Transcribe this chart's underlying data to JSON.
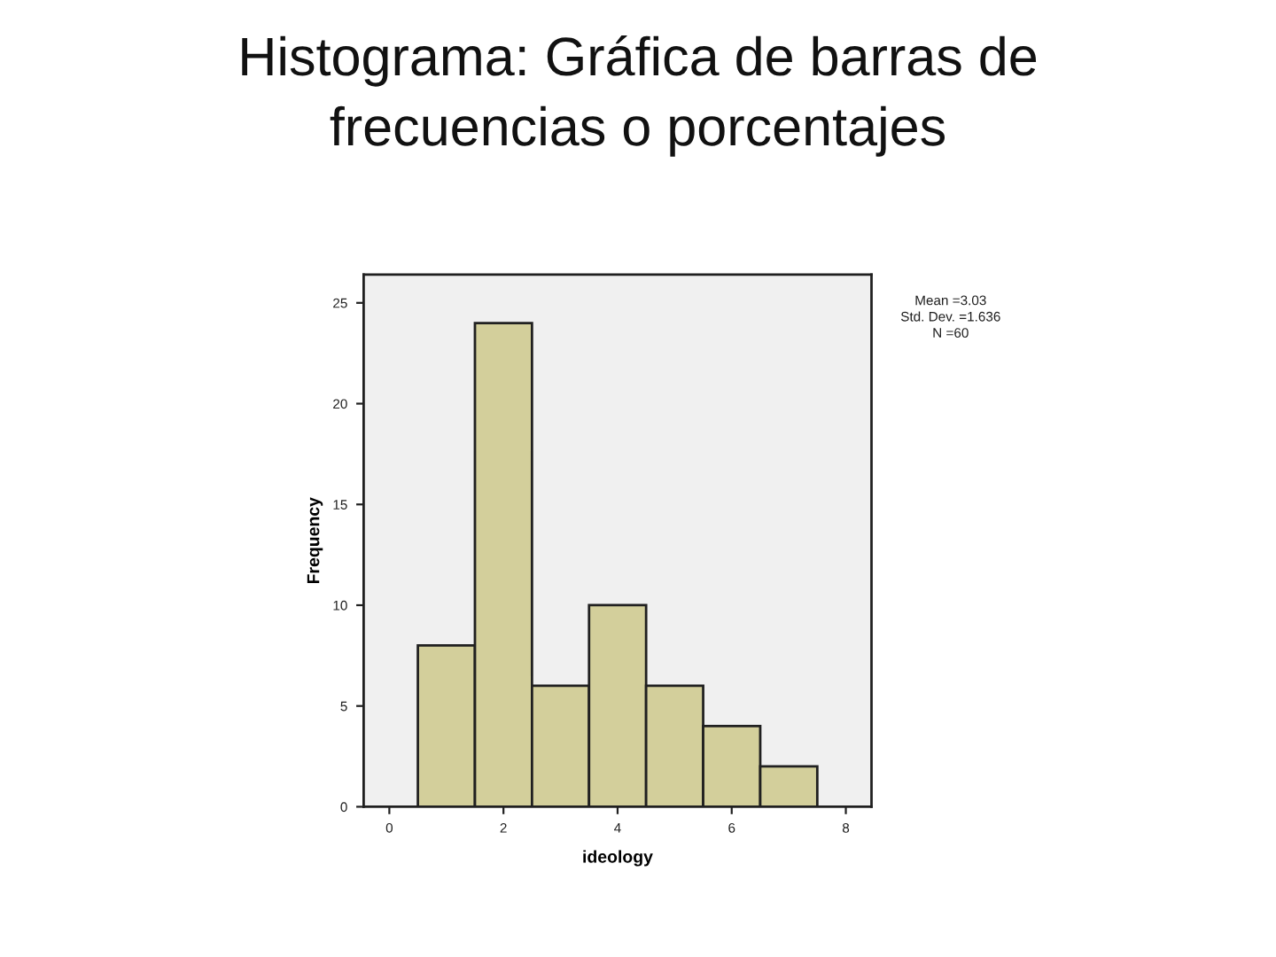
{
  "chart_data": {
    "type": "histogram",
    "title": "Histograma: Gráfica de barras de frecuencias o porcentajes",
    "xlabel": "ideology",
    "ylabel": "Frequency",
    "bins": [
      0.5,
      1.5,
      2.5,
      3.5,
      4.5,
      5.5,
      6.5,
      7.5
    ],
    "values": [
      8,
      24,
      6,
      10,
      6,
      4,
      2
    ],
    "color": "#d3cf9b",
    "xlim": [
      -0.45,
      8.45
    ],
    "ylim": [
      0,
      26.4
    ],
    "xticks": [
      0,
      2,
      4,
      6,
      8
    ],
    "yticks": [
      0,
      5,
      10,
      15,
      20,
      25
    ],
    "annotations": [
      "Mean =3.03",
      "Std. Dev. =1.636",
      "N =60"
    ],
    "grid": false,
    "legend": false
  }
}
